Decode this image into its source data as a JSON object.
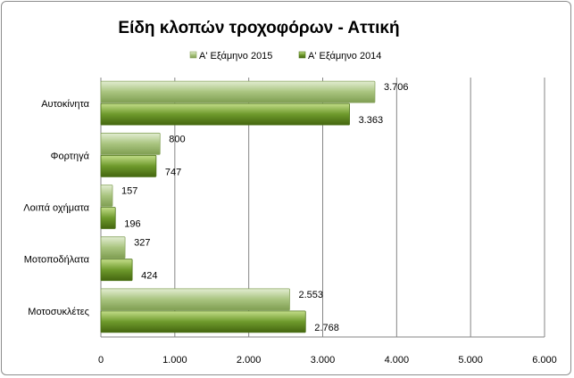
{
  "chart_data": {
    "type": "bar",
    "orientation": "horizontal",
    "title": "Είδη κλοπών τροχοφόρων - Αττική",
    "categories": [
      "Αυτοκίνητα",
      "Φορτηγά",
      "Λοιπά οχήματα",
      "Μοτοποδήλατα",
      "Μοτοσυκλέτες"
    ],
    "series": [
      {
        "name": "Α' Εξάμηνο 2015",
        "values": [
          3706,
          800,
          157,
          327,
          2553
        ],
        "labels": [
          "3.706",
          "800",
          "157",
          "327",
          "2.553"
        ],
        "color": "#a9c47f"
      },
      {
        "name": "Α' Εξάμηνο 2014",
        "values": [
          3363,
          747,
          196,
          424,
          2768
        ],
        "labels": [
          "3.363",
          "747",
          "196",
          "424",
          "2.768"
        ],
        "color": "#6e9a2c"
      }
    ],
    "xlim": [
      0,
      6000
    ],
    "ticks": [
      0,
      1000,
      2000,
      3000,
      4000,
      5000,
      6000
    ],
    "tick_labels": [
      "0",
      "1.000",
      "2.000",
      "3.000",
      "4.000",
      "5.000",
      "6.000"
    ],
    "xlabel": "",
    "ylabel": "",
    "grid": true,
    "legend_position": "top"
  }
}
